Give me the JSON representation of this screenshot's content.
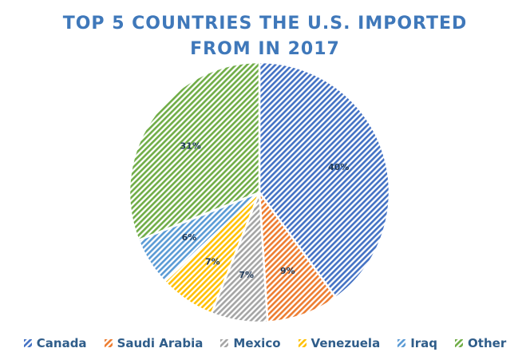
{
  "chart_data": {
    "type": "pie",
    "title_lines": [
      "TOP 5 COUNTRIES THE U.S. IMPORTED",
      "FROM IN 2017"
    ],
    "categories": [
      "Canada",
      "Saudi Arabia",
      "Mexico",
      "Venezuela",
      "Iraq",
      "Other"
    ],
    "values": [
      40,
      9,
      7,
      7,
      6,
      31
    ],
    "value_labels": [
      "40%",
      "9%",
      "7%",
      "7%",
      "6%",
      "31%"
    ],
    "colors": [
      "#4472c4",
      "#ed7d31",
      "#a5a5a5",
      "#ffc000",
      "#5b9bd5",
      "#70ad47"
    ],
    "legend_position": "bottom",
    "pattern": "diagonal-hatch"
  }
}
